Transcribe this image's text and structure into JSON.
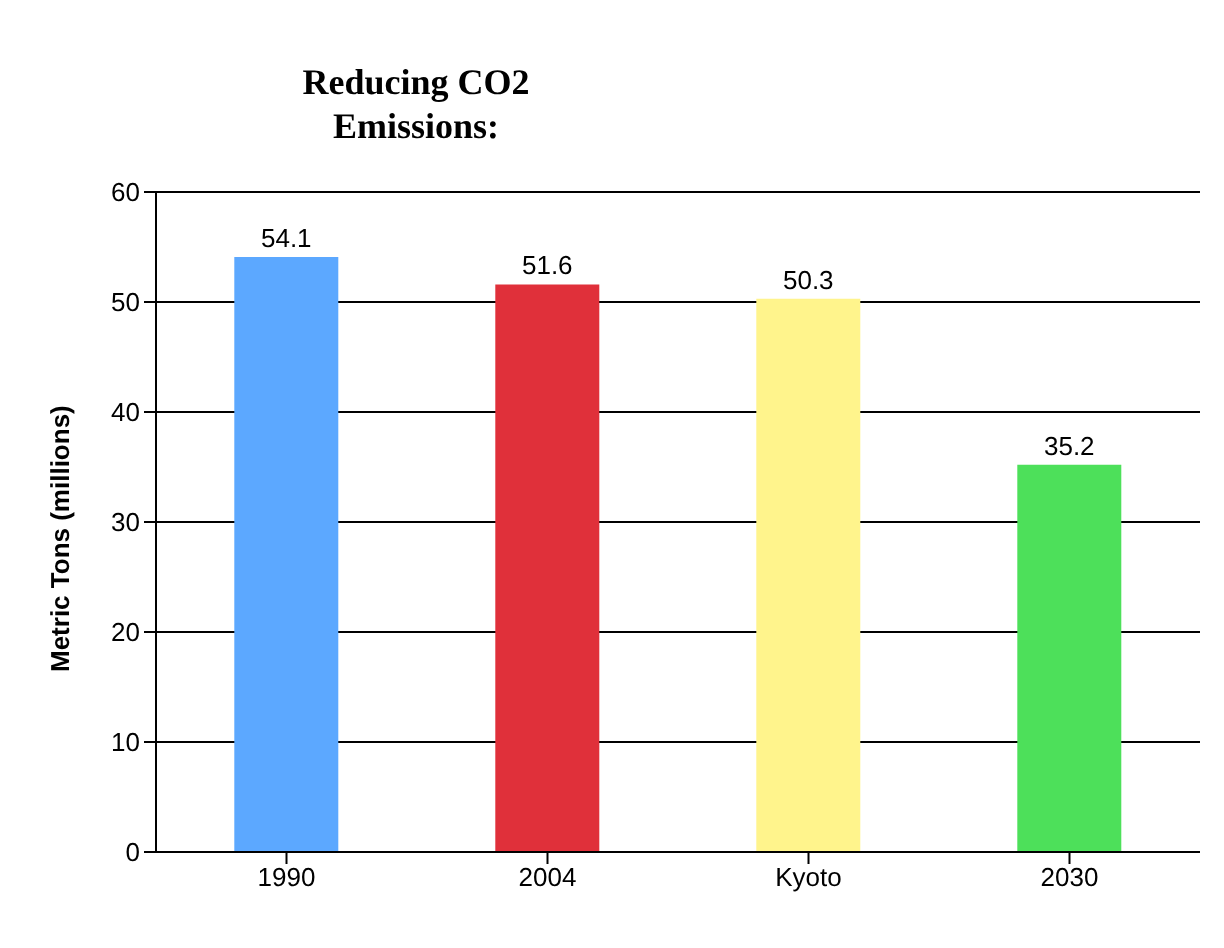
{
  "chart_data": {
    "type": "bar",
    "title": "Reducing CO2 Emissions:",
    "ylabel": "Metric Tons (millions)",
    "categories": [
      "1990",
      "2004",
      "Kyoto",
      "2030"
    ],
    "values": [
      54.1,
      51.6,
      50.3,
      35.2
    ],
    "colors": [
      "#5ca8ff",
      "#e0303a",
      "#fff48c",
      "#4de05a"
    ],
    "ylim": [
      0,
      60
    ],
    "yticks": [
      0,
      10,
      20,
      30,
      40,
      50,
      60
    ],
    "grid": "y",
    "data_labels": true
  }
}
